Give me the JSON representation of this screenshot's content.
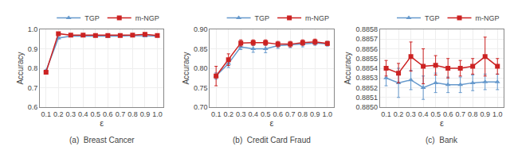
{
  "chart_data": [
    {
      "type": "line",
      "subtitle": "(a)  Breast Cancer",
      "x": [
        0.1,
        0.2,
        0.3,
        0.4,
        0.5,
        0.6,
        0.7,
        0.8,
        0.9,
        1.0
      ],
      "xlabel": "ε",
      "ylabel": "Accuracy",
      "xlim": [
        0.05,
        1.05
      ],
      "xticks": [
        0.1,
        0.2,
        0.3,
        0.4,
        0.5,
        0.6,
        0.7,
        0.8,
        0.9,
        {
          "value": 1.0,
          "label": "1.0"
        }
      ],
      "ylim": [
        0.6,
        1.0
      ],
      "yticks": [
        0.6,
        0.7,
        0.8,
        0.9,
        {
          "value": 1.0,
          "label": "1.0"
        }
      ],
      "grid": true,
      "legend": "top right",
      "series": [
        {
          "name": "TGP",
          "color": "#6699CC",
          "marker": "triangle-up",
          "values": [
            0.788,
            0.955,
            0.965,
            0.965,
            0.965,
            0.963,
            0.965,
            0.968,
            0.965,
            0.965
          ],
          "errors": [
            0.003,
            0.004,
            0.003,
            0.003,
            0.003,
            0.003,
            0.003,
            0.003,
            0.003,
            0.003
          ]
        },
        {
          "name": "m-NGP",
          "color": "#CC2222",
          "marker": "square",
          "values": [
            0.78,
            0.978,
            0.97,
            0.97,
            0.968,
            0.968,
            0.968,
            0.97,
            0.975,
            0.968
          ],
          "errors": [
            0.008,
            0.006,
            0.005,
            0.005,
            0.005,
            0.005,
            0.005,
            0.005,
            0.005,
            0.005
          ]
        }
      ]
    },
    {
      "type": "line",
      "subtitle": "(b)  Credit Card Fraud",
      "x": [
        0.1,
        0.2,
        0.3,
        0.4,
        0.5,
        0.6,
        0.7,
        0.8,
        0.9,
        1.0
      ],
      "xlabel": "ε",
      "ylabel": "Accuracy",
      "xlim": [
        0.05,
        1.05
      ],
      "xticks": [
        0.1,
        0.2,
        0.3,
        0.4,
        0.5,
        0.6,
        0.7,
        0.8,
        0.9,
        {
          "value": 1.0,
          "label": "1.0"
        }
      ],
      "ylim": [
        0.7,
        0.9
      ],
      "yticks": [
        {
          "value": 0.7,
          "label": "0.70"
        },
        0.75,
        {
          "value": 0.8,
          "label": "0.80"
        },
        0.85,
        {
          "value": 0.9,
          "label": "0.90"
        }
      ],
      "grid": true,
      "legend": "top right",
      "series": [
        {
          "name": "TGP",
          "color": "#6699CC",
          "marker": "triangle-up",
          "values": [
            0.78,
            0.812,
            0.855,
            0.85,
            0.85,
            0.858,
            0.86,
            0.862,
            0.865,
            0.863
          ],
          "errors": [
            0.008,
            0.01,
            0.007,
            0.009,
            0.01,
            0.007,
            0.007,
            0.007,
            0.006,
            0.006
          ]
        },
        {
          "name": "m-NGP",
          "color": "#CC2222",
          "marker": "square",
          "values": [
            0.78,
            0.822,
            0.865,
            0.866,
            0.866,
            0.862,
            0.862,
            0.866,
            0.868,
            0.864
          ],
          "errors": [
            0.025,
            0.015,
            0.008,
            0.007,
            0.007,
            0.007,
            0.007,
            0.007,
            0.007,
            0.005
          ]
        }
      ]
    },
    {
      "type": "line",
      "subtitle": "(c)  Bank",
      "x": [
        0.1,
        0.2,
        0.3,
        0.4,
        0.5,
        0.6,
        0.7,
        0.8,
        0.9,
        1.0
      ],
      "xlabel": "ε",
      "ylabel": "Accuracy",
      "xlim": [
        0.05,
        1.05
      ],
      "xticks": [
        0.1,
        0.2,
        0.3,
        0.4,
        0.5,
        0.6,
        0.7,
        0.8,
        0.9,
        {
          "value": 1.0,
          "label": "1.0"
        }
      ],
      "ylim": [
        0.885,
        0.8858
      ],
      "yticks": [
        {
          "value": 0.885,
          "label": "0.8850"
        },
        0.8851,
        0.8852,
        0.8853,
        0.8854,
        0.8855,
        0.8856,
        0.8857,
        0.8858
      ],
      "grid": true,
      "legend": "top right",
      "series": [
        {
          "name": "TGP",
          "color": "#6699CC",
          "marker": "triangle-up",
          "values": [
            0.8853,
            0.88525,
            0.88528,
            0.8852,
            0.88525,
            0.88523,
            0.88523,
            0.88525,
            0.88526,
            0.88526
          ],
          "errors": [
            8e-05,
            0.00015,
            0.0001,
            0.00012,
            0.0001,
            8e-05,
            8e-05,
            8e-05,
            8e-05,
            8e-05
          ]
        },
        {
          "name": "m-NGP",
          "color": "#CC2222",
          "marker": "square",
          "values": [
            0.8854,
            0.88535,
            0.88552,
            0.88542,
            0.88543,
            0.8854,
            0.8854,
            0.88542,
            0.88552,
            0.88542
          ],
          "errors": [
            8e-05,
            0.0001,
            0.00015,
            0.00018,
            0.0001,
            0.0001,
            8e-05,
            8e-05,
            0.0002,
            8e-05
          ]
        }
      ]
    }
  ]
}
